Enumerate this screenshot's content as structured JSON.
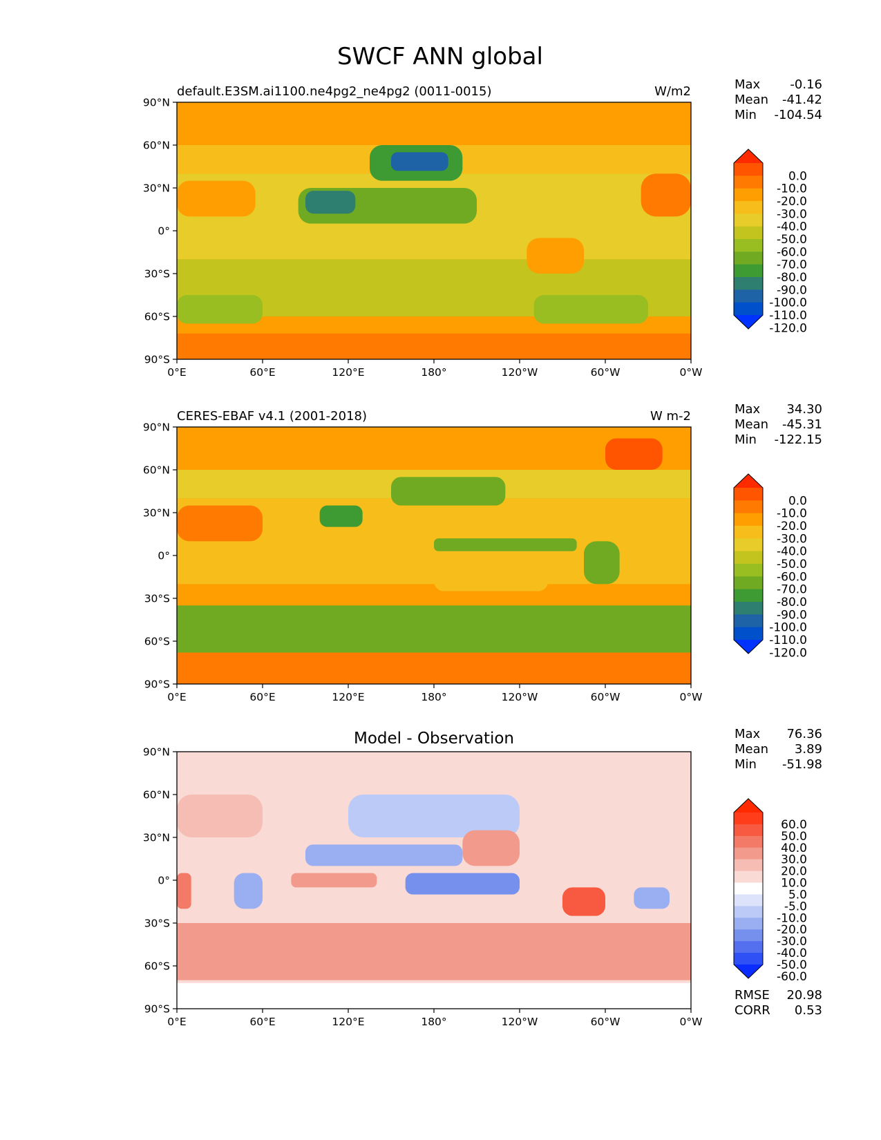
{
  "figure": {
    "title": "SWCF ANN global"
  },
  "chart_data": [
    {
      "type": "heatmap",
      "title": "default.E3SM.ai1100.ne4pg2_ne4pg2 (0011-0015)",
      "units": "W/m2",
      "stats": [
        {
          "label": "Max",
          "value": "-0.16"
        },
        {
          "label": "Mean",
          "value": "-41.42"
        },
        {
          "label": "Min",
          "value": "-104.54"
        }
      ],
      "x_ticks": [
        "0°E",
        "60°E",
        "120°E",
        "180°",
        "120°W",
        "60°W",
        "0°W"
      ],
      "y_ticks": [
        "90°N",
        "60°N",
        "30°N",
        "0°",
        "30°S",
        "60°S",
        "90°S"
      ],
      "xlim": [
        0,
        360
      ],
      "ylim": [
        -90,
        90
      ],
      "colorbar": {
        "labels": [
          "0.0",
          "-10.0",
          "-20.0",
          "-30.0",
          "-40.0",
          "-50.0",
          "-60.0",
          "-70.0",
          "-80.0",
          "-90.0",
          "-100.0",
          "-110.0",
          "-120.0"
        ],
        "colors": [
          "#ff2a00",
          "#ff5500",
          "#ff7a00",
          "#ff9e00",
          "#f7bd1a",
          "#e8cc2a",
          "#c4c41e",
          "#99be22",
          "#6faa22",
          "#3e9a33",
          "#2f7f70",
          "#1e63a6",
          "#0050cc",
          "#0033ff"
        ]
      },
      "regions": [
        {
          "lon": [
            0,
            360
          ],
          "lat": [
            -90,
            90
          ],
          "value": -22
        },
        {
          "lon": [
            0,
            360
          ],
          "lat": [
            60,
            90
          ],
          "value": -22
        },
        {
          "lon": [
            0,
            360
          ],
          "lat": [
            40,
            60
          ],
          "value": -35
        },
        {
          "lon": [
            0,
            360
          ],
          "lat": [
            -20,
            40
          ],
          "value": -45
        },
        {
          "lon": [
            0,
            360
          ],
          "lat": [
            -60,
            -20
          ],
          "value": -56
        },
        {
          "lon": [
            0,
            360
          ],
          "lat": [
            -72,
            -60
          ],
          "value": -30
        },
        {
          "lon": [
            0,
            360
          ],
          "lat": [
            -90,
            -72
          ],
          "value": -20
        },
        {
          "lon": [
            135,
            200
          ],
          "lat": [
            35,
            60
          ],
          "value": -82
        },
        {
          "lon": [
            150,
            190
          ],
          "lat": [
            42,
            55
          ],
          "value": -102
        },
        {
          "lon": [
            85,
            210
          ],
          "lat": [
            5,
            30
          ],
          "value": -74
        },
        {
          "lon": [
            90,
            125
          ],
          "lat": [
            12,
            28
          ],
          "value": -92
        },
        {
          "lon": [
            325,
            360
          ],
          "lat": [
            10,
            40
          ],
          "value": -18
        },
        {
          "lon": [
            0,
            55
          ],
          "lat": [
            10,
            35
          ],
          "value": -22
        },
        {
          "lon": [
            245,
            285
          ],
          "lat": [
            -30,
            -5
          ],
          "value": -22
        },
        {
          "lon": [
            250,
            330
          ],
          "lat": [
            -65,
            -45
          ],
          "value": -65
        },
        {
          "lon": [
            0,
            60
          ],
          "lat": [
            -65,
            -45
          ],
          "value": -65
        }
      ]
    },
    {
      "type": "heatmap",
      "title": "CERES-EBAF v4.1 (2001-2018)",
      "units": "W m-2",
      "stats": [
        {
          "label": "Max",
          "value": "34.30"
        },
        {
          "label": "Mean",
          "value": "-45.31"
        },
        {
          "label": "Min",
          "value": "-122.15"
        }
      ],
      "x_ticks": [
        "0°E",
        "60°E",
        "120°E",
        "180°",
        "120°W",
        "60°W",
        "0°W"
      ],
      "y_ticks": [
        "90°N",
        "60°N",
        "30°N",
        "0°",
        "30°S",
        "60°S",
        "90°S"
      ],
      "xlim": [
        0,
        360
      ],
      "ylim": [
        -90,
        90
      ],
      "colorbar": {
        "labels": [
          "0.0",
          "-10.0",
          "-20.0",
          "-30.0",
          "-40.0",
          "-50.0",
          "-60.0",
          "-70.0",
          "-80.0",
          "-90.0",
          "-100.0",
          "-110.0",
          "-120.0"
        ],
        "colors": [
          "#ff2a00",
          "#ff5500",
          "#ff7a00",
          "#ff9e00",
          "#f7bd1a",
          "#e8cc2a",
          "#c4c41e",
          "#99be22",
          "#6faa22",
          "#3e9a33",
          "#2f7f70",
          "#1e63a6",
          "#0050cc",
          "#0033ff"
        ]
      },
      "regions": [
        {
          "lon": [
            0,
            360
          ],
          "lat": [
            -90,
            90
          ],
          "value": -25
        },
        {
          "lon": [
            0,
            360
          ],
          "lat": [
            60,
            90
          ],
          "value": -25
        },
        {
          "lon": [
            0,
            360
          ],
          "lat": [
            40,
            60
          ],
          "value": -45
        },
        {
          "lon": [
            0,
            360
          ],
          "lat": [
            -20,
            40
          ],
          "value": -40
        },
        {
          "lon": [
            0,
            360
          ],
          "lat": [
            -68,
            -35
          ],
          "value": -72
        },
        {
          "lon": [
            0,
            360
          ],
          "lat": [
            -90,
            -68
          ],
          "value": -15
        },
        {
          "lon": [
            150,
            230
          ],
          "lat": [
            35,
            55
          ],
          "value": -76
        },
        {
          "lon": [
            180,
            280
          ],
          "lat": [
            3,
            12
          ],
          "value": -72
        },
        {
          "lon": [
            0,
            60
          ],
          "lat": [
            10,
            35
          ],
          "value": -18
        },
        {
          "lon": [
            300,
            340
          ],
          "lat": [
            60,
            82
          ],
          "value": -5
        },
        {
          "lon": [
            285,
            310
          ],
          "lat": [
            -20,
            10
          ],
          "value": -78
        },
        {
          "lon": [
            100,
            130
          ],
          "lat": [
            20,
            35
          ],
          "value": -88
        },
        {
          "lon": [
            180,
            260
          ],
          "lat": [
            -25,
            -5
          ],
          "value": -32
        }
      ]
    },
    {
      "type": "heatmap",
      "title": "Model - Observation",
      "units": "",
      "stats": [
        {
          "label": "Max",
          "value": "76.36"
        },
        {
          "label": "Mean",
          "value": "3.89"
        },
        {
          "label": "Min",
          "value": "-51.98"
        }
      ],
      "extra_stats": [
        {
          "label": "RMSE",
          "value": "20.98"
        },
        {
          "label": "CORR",
          "value": "0.53"
        }
      ],
      "x_ticks": [
        "0°E",
        "60°E",
        "120°E",
        "180°",
        "120°W",
        "60°W",
        "0°W"
      ],
      "y_ticks": [
        "90°N",
        "60°N",
        "30°N",
        "0°",
        "30°S",
        "60°S",
        "90°S"
      ],
      "xlim": [
        0,
        360
      ],
      "ylim": [
        -90,
        90
      ],
      "colorbar": {
        "labels": [
          "60.0",
          "50.0",
          "40.0",
          "30.0",
          "20.0",
          "10.0",
          "5.0",
          "-5.0",
          "-10.0",
          "-20.0",
          "-30.0",
          "-40.0",
          "-50.0",
          "-60.0"
        ],
        "colors": [
          "#ff2a00",
          "#ff3d1a",
          "#f75a40",
          "#f27a66",
          "#f29b8c",
          "#f5bdb3",
          "#fadad5",
          "#ffffff",
          "#dce3fa",
          "#bccaf7",
          "#9aaef2",
          "#7690ee",
          "#5470ee",
          "#2e50f5",
          "#0a2cff"
        ]
      },
      "regions": [
        {
          "lon": [
            0,
            360
          ],
          "lat": [
            -90,
            90
          ],
          "value": 8
        },
        {
          "lon": [
            0,
            60
          ],
          "lat": [
            30,
            60
          ],
          "value": 15
        },
        {
          "lon": [
            0,
            360
          ],
          "lat": [
            -70,
            -30
          ],
          "value": 22
        },
        {
          "lon": [
            120,
            240
          ],
          "lat": [
            30,
            60
          ],
          "value": -18
        },
        {
          "lon": [
            90,
            200
          ],
          "lat": [
            10,
            25
          ],
          "value": -28
        },
        {
          "lon": [
            160,
            240
          ],
          "lat": [
            -10,
            5
          ],
          "value": -32
        },
        {
          "lon": [
            40,
            60
          ],
          "lat": [
            -20,
            5
          ],
          "value": -25
        },
        {
          "lon": [
            270,
            300
          ],
          "lat": [
            -25,
            -5
          ],
          "value": 45
        },
        {
          "lon": [
            0,
            10
          ],
          "lat": [
            -20,
            5
          ],
          "value": 35
        },
        {
          "lon": [
            320,
            345
          ],
          "lat": [
            -20,
            -5
          ],
          "value": -30
        },
        {
          "lon": [
            200,
            240
          ],
          "lat": [
            10,
            35
          ],
          "value": 25
        },
        {
          "lon": [
            80,
            140
          ],
          "lat": [
            -5,
            5
          ],
          "value": 22
        },
        {
          "lon": [
            0,
            360
          ],
          "lat": [
            -90,
            -72
          ],
          "value": 2
        }
      ]
    }
  ]
}
